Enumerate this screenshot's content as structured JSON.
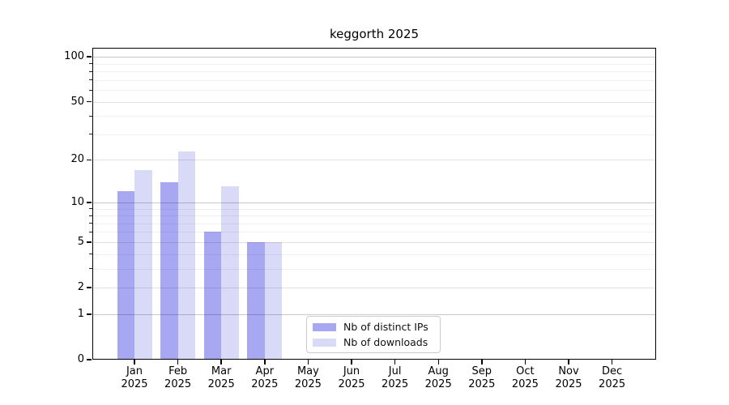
{
  "title": "keggorth 2025",
  "chart_data": {
    "type": "bar",
    "title": "keggorth 2025",
    "year": "2025",
    "categories": [
      "Jan",
      "Feb",
      "Mar",
      "Apr",
      "May",
      "Jun",
      "Jul",
      "Aug",
      "Sep",
      "Oct",
      "Nov",
      "Dec"
    ],
    "series": [
      {
        "name": "Nb of distinct IPs",
        "color": "#a8a8f2",
        "values": [
          12,
          14,
          6,
          5,
          0,
          0,
          0,
          0,
          0,
          0,
          0,
          0
        ]
      },
      {
        "name": "Nb of downloads",
        "color": "#d9d9f8",
        "values": [
          17,
          23,
          13,
          5,
          0,
          0,
          0,
          0,
          0,
          0,
          0,
          0
        ]
      }
    ],
    "yscale": "log10(value+1)",
    "yticks": [
      0,
      1,
      2,
      5,
      10,
      20,
      50,
      100
    ],
    "ylim": [
      0,
      113
    ],
    "grid": true,
    "legend_position": "lower center",
    "colors": {
      "grid_decade": "#c9c9c9",
      "grid_mid": "#e1e1e1",
      "grid_minor": "#f0f0f0",
      "axis": "#000000",
      "background": "#ffffff"
    }
  }
}
